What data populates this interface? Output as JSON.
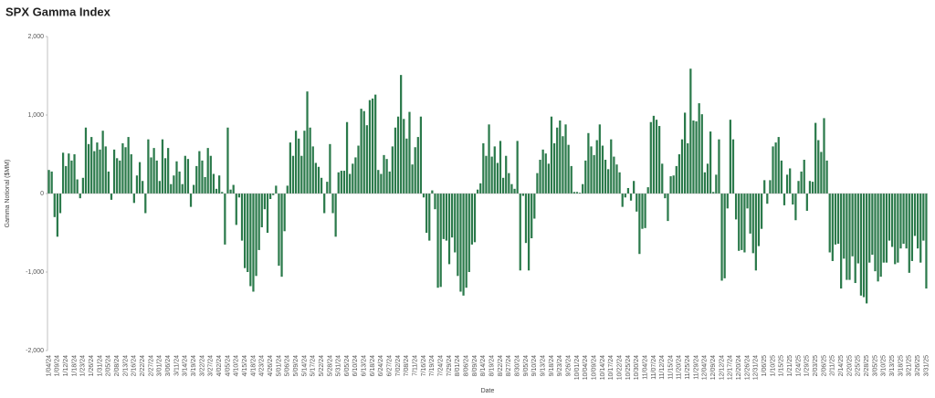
{
  "chart_data": {
    "type": "bar",
    "title": "SPX Gamma Index",
    "x_label": "Date",
    "y_label": "Gamma Notional ($MM)",
    "color": "#2b7a4b",
    "grid": false,
    "ylim": [
      -2000,
      2000
    ],
    "yticks": [
      {
        "value": -2000,
        "label": "-2,000"
      },
      {
        "value": -1000,
        "label": "-1,000"
      },
      0,
      {
        "value": 1000,
        "label": "1,000"
      },
      {
        "value": 2000,
        "label": "2,000"
      }
    ],
    "categories": [
      "1/04/24",
      null,
      null,
      "1/09/24",
      null,
      null,
      "1/12/24",
      null,
      null,
      "1/18/24",
      null,
      null,
      "1/23/24",
      null,
      null,
      "1/26/24",
      null,
      null,
      "1/31/24",
      null,
      null,
      "2/05/24",
      null,
      null,
      "2/08/24",
      null,
      null,
      "2/13/24",
      null,
      null,
      "2/16/24",
      null,
      null,
      "2/22/24",
      null,
      null,
      "2/27/24",
      null,
      null,
      "3/01/24",
      null,
      null,
      "3/06/24",
      null,
      null,
      "3/11/24",
      null,
      null,
      "3/14/24",
      null,
      null,
      "3/19/24",
      null,
      null,
      "3/22/24",
      null,
      null,
      "3/27/24",
      null,
      null,
      "4/02/24",
      null,
      null,
      "4/05/24",
      null,
      null,
      "4/10/24",
      null,
      null,
      "4/15/24",
      null,
      null,
      "4/18/24",
      null,
      null,
      "4/23/24",
      null,
      null,
      "4/26/24",
      null,
      null,
      "5/01/24",
      null,
      null,
      "5/06/24",
      null,
      null,
      "5/09/24",
      null,
      null,
      "5/14/24",
      null,
      null,
      "5/17/24",
      null,
      null,
      "5/22/24",
      null,
      null,
      "5/28/24",
      null,
      null,
      "5/31/24",
      null,
      null,
      "6/05/24",
      null,
      null,
      "6/10/24",
      null,
      null,
      "6/13/24",
      null,
      null,
      "6/18/24",
      null,
      null,
      "6/24/24",
      null,
      null,
      "6/27/24",
      null,
      null,
      "7/02/24",
      null,
      null,
      "7/08/24",
      null,
      null,
      "7/11/24",
      null,
      null,
      "7/16/24",
      null,
      null,
      "7/19/24",
      null,
      null,
      "7/24/24",
      null,
      null,
      "7/29/24",
      null,
      null,
      "8/01/24",
      null,
      null,
      "8/06/24",
      null,
      null,
      "8/09/24",
      null,
      null,
      "8/14/24",
      null,
      null,
      "8/19/24",
      null,
      null,
      "8/22/24",
      null,
      null,
      "8/27/24",
      null,
      null,
      "8/30/24",
      null,
      null,
      "9/05/24",
      null,
      null,
      "9/10/24",
      null,
      null,
      "9/13/24",
      null,
      null,
      "9/18/24",
      null,
      null,
      "9/23/24",
      null,
      null,
      "9/26/24",
      null,
      null,
      "10/01/24",
      null,
      null,
      "10/04/24",
      null,
      null,
      "10/09/24",
      null,
      null,
      "10/14/24",
      null,
      null,
      "10/17/24",
      null,
      null,
      "10/22/24",
      null,
      null,
      "10/25/24",
      null,
      null,
      "10/30/24",
      null,
      null,
      "11/04/24",
      null,
      null,
      "11/07/24",
      null,
      null,
      "11/12/24",
      null,
      null,
      "11/15/24",
      null,
      null,
      "11/20/24",
      null,
      null,
      "11/25/24",
      null,
      null,
      "11/29/24",
      null,
      null,
      "12/04/24",
      null,
      null,
      "12/09/24",
      null,
      null,
      "12/12/24",
      null,
      null,
      "12/17/24",
      null,
      null,
      "12/20/24",
      null,
      null,
      "12/26/24",
      null,
      null,
      "12/31/24",
      null,
      null,
      "1/06/25",
      null,
      null,
      "1/10/25",
      null,
      null,
      "1/15/25",
      null,
      null,
      "1/21/25",
      null,
      null,
      "1/24/25",
      null,
      null,
      "1/29/25",
      null,
      null,
      "2/03/25",
      null,
      null,
      "2/06/25",
      null,
      null,
      "2/11/25",
      null,
      null,
      "2/14/25",
      null,
      null,
      "2/20/25",
      null,
      null,
      "2/25/25",
      null,
      null,
      "2/28/25",
      null,
      null,
      "3/05/25",
      null,
      null,
      "3/10/25",
      null,
      null,
      "3/13/25",
      null,
      null,
      "3/18/25",
      null,
      null,
      "3/21/25",
      null,
      null,
      "3/26/25",
      null,
      null,
      "3/31/25"
    ],
    "values": [
      300,
      280,
      -300,
      -550,
      -250,
      520,
      350,
      510,
      420,
      500,
      180,
      -60,
      200,
      840,
      630,
      720,
      540,
      650,
      560,
      800,
      600,
      280,
      -80,
      560,
      450,
      420,
      640,
      590,
      720,
      500,
      -120,
      230,
      400,
      160,
      -250,
      690,
      460,
      580,
      420,
      160,
      690,
      450,
      580,
      120,
      230,
      410,
      280,
      120,
      480,
      440,
      -170,
      110,
      350,
      540,
      420,
      210,
      580,
      480,
      250,
      60,
      230,
      20,
      -650,
      840,
      50,
      110,
      -400,
      -50,
      -600,
      -950,
      -1000,
      -1180,
      -1250,
      -1050,
      -720,
      -430,
      -200,
      -500,
      -70,
      -20,
      100,
      -920,
      -1060,
      -480,
      100,
      650,
      480,
      800,
      700,
      480,
      800,
      1300,
      840,
      600,
      390,
      340,
      200,
      -250,
      150,
      630,
      -250,
      -550,
      270,
      290,
      290,
      910,
      250,
      380,
      460,
      610,
      1080,
      1050,
      870,
      1190,
      1210,
      1260,
      300,
      250,
      490,
      440,
      280,
      600,
      840,
      980,
      1510,
      950,
      700,
      1040,
      370,
      590,
      720,
      980,
      -50,
      -500,
      -600,
      40,
      -200,
      -1200,
      -1190,
      -580,
      -600,
      -900,
      -560,
      -750,
      -1050,
      -1250,
      -1300,
      -1200,
      -1000,
      -650,
      -620,
      50,
      130,
      640,
      480,
      880,
      470,
      600,
      390,
      670,
      200,
      480,
      260,
      120,
      60,
      670,
      -980,
      -30,
      -630,
      -980,
      -570,
      -320,
      260,
      430,
      560,
      510,
      380,
      980,
      640,
      840,
      930,
      730,
      880,
      620,
      350,
      20,
      20,
      10,
      120,
      420,
      770,
      600,
      490,
      680,
      880,
      610,
      430,
      310,
      690,
      470,
      370,
      270,
      -170,
      -50,
      70,
      -90,
      160,
      -230,
      -770,
      -450,
      -440,
      80,
      910,
      990,
      940,
      860,
      380,
      -60,
      -350,
      220,
      230,
      350,
      500,
      690,
      1030,
      640,
      1590,
      930,
      920,
      1150,
      1010,
      270,
      380,
      790,
      20,
      240,
      690,
      -1110,
      -1080,
      -190,
      940,
      690,
      -330,
      -730,
      -720,
      -750,
      -190,
      -510,
      -760,
      -980,
      -670,
      -450,
      170,
      -130,
      170,
      600,
      650,
      720,
      420,
      -150,
      240,
      320,
      -140,
      -340,
      160,
      280,
      430,
      -220,
      160,
      150,
      900,
      680,
      530,
      960,
      420,
      -750,
      -860,
      -650,
      -640,
      -1210,
      -830,
      -1100,
      -1100,
      -800,
      -1140,
      -890,
      -1300,
      -1320,
      -1400,
      -880,
      -780,
      -990,
      -1120,
      -1060,
      -880,
      -880,
      -600,
      -680,
      -900,
      -880,
      -700,
      -640,
      -700,
      -1010,
      -860,
      -540,
      -700,
      -880,
      -600,
      -1210
    ]
  }
}
